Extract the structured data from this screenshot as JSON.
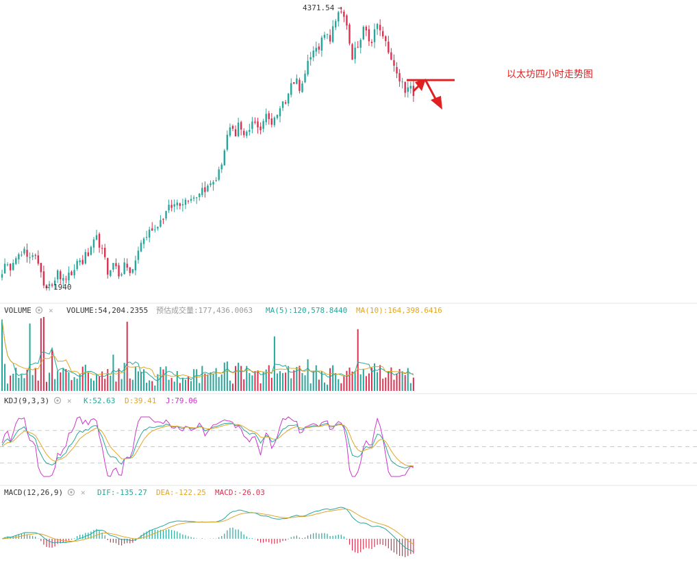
{
  "annotation": "以太坊四小时走势图",
  "price_panel": {
    "high_label": "4371.54",
    "low_label": "1940"
  },
  "volume_panel": {
    "title": "VOLUME",
    "volume_label": "VOLUME:54,204.2355",
    "estimate_label": "预估成交量:177,436.0063",
    "ma5_label": "MA(5):120,578.8440",
    "ma10_label": "MA(10):164,398.6416"
  },
  "kdj_panel": {
    "title": "KDJ(9,3,3)",
    "k_label": "K:52.63",
    "d_label": "D:39.41",
    "j_label": "J:79.06"
  },
  "macd_panel": {
    "title": "MACD(12,26,9)",
    "dif_label": "DIF:-135.27",
    "dea_label": "DEA:-122.25",
    "macd_label": "MACD:-26.03"
  },
  "colors": {
    "up": "#26a69a",
    "down": "#d9304f",
    "ma5": "#26a69a",
    "ma10": "#e0a526",
    "kdj_k": "#26a69a",
    "kdj_d": "#e0a526",
    "kdj_j": "#cc33cc",
    "annotation": "#e02020",
    "label_gray": "#333333"
  },
  "chart_data": {
    "type": "candlestick",
    "title": "以太坊四小时走势图",
    "price_path": [
      2080,
      2140,
      2090,
      2180,
      2230,
      2200,
      2260,
      2180,
      2230,
      2250,
      2120,
      2010,
      1940,
      2000,
      1960,
      2080,
      2030,
      1990,
      2060,
      2010,
      2120,
      2190,
      2150,
      2230,
      2220,
      2320,
      2370,
      2290,
      2220,
      2060,
      2130,
      2150,
      2050,
      2080,
      2160,
      2060,
      2090,
      2210,
      2330,
      2360,
      2400,
      2460,
      2440,
      2510,
      2530,
      2590,
      2640,
      2640,
      2680,
      2670,
      2690,
      2710,
      2730,
      2720,
      2760,
      2800,
      2790,
      2830,
      2860,
      2890,
      2980,
      3120,
      3280,
      3320,
      3230,
      3370,
      3260,
      3300,
      3310,
      3380,
      3350,
      3310,
      3420,
      3450,
      3350,
      3410,
      3500,
      3560,
      3520,
      3680,
      3730,
      3740,
      3640,
      3750,
      3880,
      3940,
      4060,
      3980,
      4100,
      4170,
      4080,
      4250,
      4270,
      4371.54,
      4280,
      4150,
      3900,
      4010,
      4050,
      4180,
      4160,
      4020,
      4120,
      4230,
      4170,
      4100,
      3980,
      3880,
      3850,
      3700,
      3700,
      3620,
      3700,
      3600
    ],
    "high": 4371.54,
    "low": 1940,
    "volume": {
      "latest": 54204.2355,
      "estimated": 177436.0063,
      "ma5": 120578.844,
      "ma10": 164398.6416
    },
    "kdj": {
      "params": "9,3,3",
      "K": 52.63,
      "D": 39.41,
      "J": 79.06
    },
    "macd": {
      "params": "12,26,9",
      "DIF": -135.27,
      "DEA": -122.25,
      "MACD": -26.03
    }
  }
}
